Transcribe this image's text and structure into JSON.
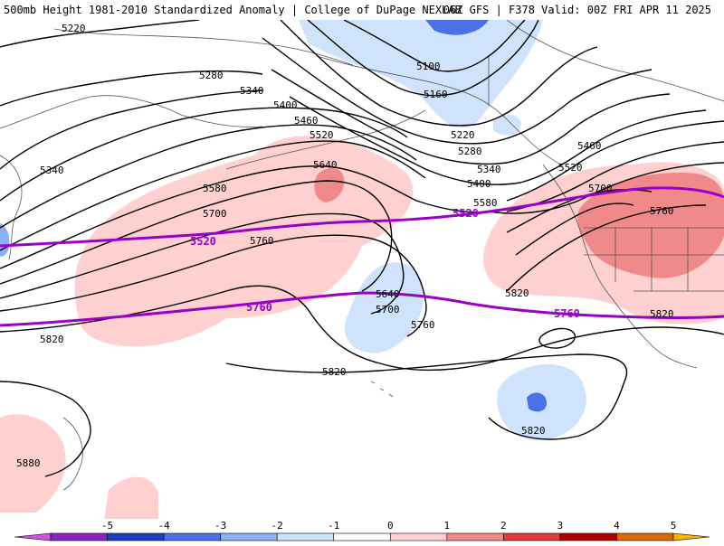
{
  "header": {
    "left": "500mb Height 1981-2010 Standardized Anomaly | College of DuPage NEXLAB",
    "right": "06Z GFS | F378 Valid: 00Z FRI APR 11 2025"
  },
  "contour_labels": [
    {
      "id": "c5220a",
      "text": "5220"
    },
    {
      "id": "c5280a",
      "text": "5280"
    },
    {
      "id": "c5340a",
      "text": "5340"
    },
    {
      "id": "c5340b",
      "text": "5340"
    },
    {
      "id": "c5400a",
      "text": "5400"
    },
    {
      "id": "c5460a",
      "text": "5460"
    },
    {
      "id": "c5520a",
      "text": "5520"
    },
    {
      "id": "c5580a",
      "text": "5580"
    },
    {
      "id": "c5640a",
      "text": "5640"
    },
    {
      "id": "c5700a",
      "text": "5700"
    },
    {
      "id": "c5760a",
      "text": "5760"
    },
    {
      "id": "c5820a",
      "text": "5820"
    },
    {
      "id": "c5100a",
      "text": "5100"
    },
    {
      "id": "c5160a",
      "text": "5160"
    },
    {
      "id": "c5220b",
      "text": "5220"
    },
    {
      "id": "c5280b",
      "text": "5280"
    },
    {
      "id": "c5340c",
      "text": "5340"
    },
    {
      "id": "c5400b",
      "text": "5400"
    },
    {
      "id": "c5580b",
      "text": "5580"
    },
    {
      "id": "c5640b",
      "text": "5640"
    },
    {
      "id": "c5700b",
      "text": "5700"
    },
    {
      "id": "c5760b",
      "text": "5760"
    },
    {
      "id": "c5820b",
      "text": "5820"
    },
    {
      "id": "c5460b",
      "text": "5460"
    },
    {
      "id": "c5520b",
      "text": "5520"
    },
    {
      "id": "c5700c",
      "text": "5700"
    },
    {
      "id": "c5760c",
      "text": "5760"
    },
    {
      "id": "c5820c",
      "text": "5820"
    },
    {
      "id": "c5820d",
      "text": "5820"
    },
    {
      "id": "c5820e",
      "text": "5820"
    },
    {
      "id": "c5880a",
      "text": "5880"
    }
  ],
  "climo_labels": [
    {
      "id": "m5520a",
      "text": "5520"
    },
    {
      "id": "m5520b",
      "text": "5520"
    },
    {
      "id": "m5760a",
      "text": "5760"
    },
    {
      "id": "m5760b",
      "text": "5760"
    }
  ],
  "colorbar": {
    "ticks": [
      "-5",
      "-4",
      "-3",
      "-2",
      "-1",
      "0",
      "1",
      "2",
      "3",
      "4",
      "5"
    ],
    "colors": [
      "#cc55dd",
      "#8a22c0",
      "#1f3fc0",
      "#4a72e6",
      "#8cb0f5",
      "#cfe3fd",
      "#ffffff",
      "#ffd0d0",
      "#f08a8a",
      "#e03a3a",
      "#b00000",
      "#d96a00",
      "#f7b500"
    ]
  },
  "colors": {
    "climo_line": "#9a00c8",
    "height_line": "#000000",
    "border": "#555555"
  }
}
